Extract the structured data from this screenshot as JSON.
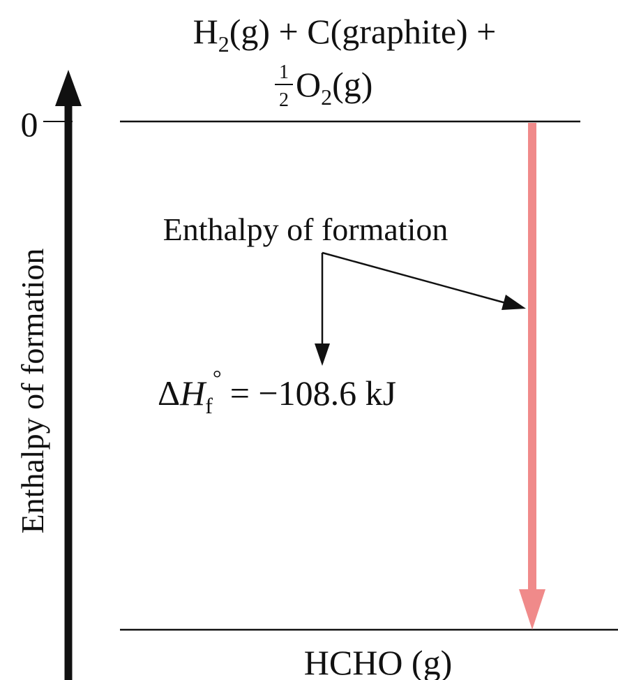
{
  "diagram": {
    "reactants": {
      "line1": {
        "h": "H",
        "h_sub": "2",
        "h_rest": "(g) + C(graphite) +"
      },
      "line2": {
        "frac_num": "1",
        "frac_den": "2",
        "o": "O",
        "o_sub": "2",
        "o_rest": "(g)"
      }
    },
    "product": "HCHO (g)",
    "axis_label": "Enthalpy of formation",
    "zero_tick": "0",
    "annotation": "Enthalpy of formation",
    "delta_h": {
      "delta": "Δ",
      "h": "H",
      "sub": "f",
      "sup": "°",
      "value": "= −108.6 kJ"
    },
    "colors": {
      "arrow": "#f08a8a",
      "ink": "#111111"
    }
  }
}
